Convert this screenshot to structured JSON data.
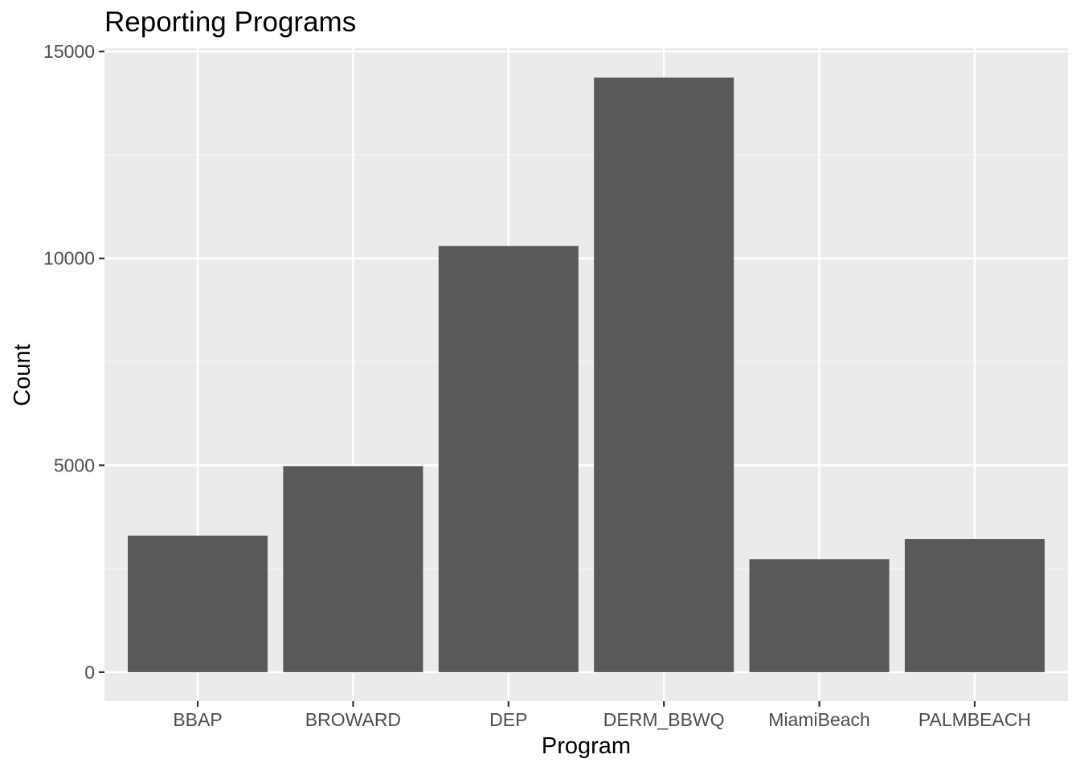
{
  "chart_data": {
    "type": "bar",
    "title": "Reporting Programs",
    "xlabel": "Program",
    "ylabel": "Count",
    "categories": [
      "BBAP",
      "BROWARD",
      "DEP",
      "DERM_BBWQ",
      "MiamiBeach",
      "PALMBEACH"
    ],
    "values": [
      3300,
      4980,
      10300,
      14370,
      2730,
      3220
    ],
    "ylim": [
      -700,
      15080
    ],
    "yticks": [
      0,
      5000,
      10000,
      15000
    ],
    "ytick_labels": [
      "0",
      "5000",
      "10000",
      "15000"
    ],
    "grid": true,
    "legend": "none"
  },
  "colors": {
    "panel_background": "#ebebeb",
    "grid_major": "#ffffff",
    "grid_minor": "#f5f5f5",
    "bar_fill": "#595959",
    "tick_mark": "#333333",
    "tick_text": "#4d4d4d",
    "title_text": "#000000"
  }
}
